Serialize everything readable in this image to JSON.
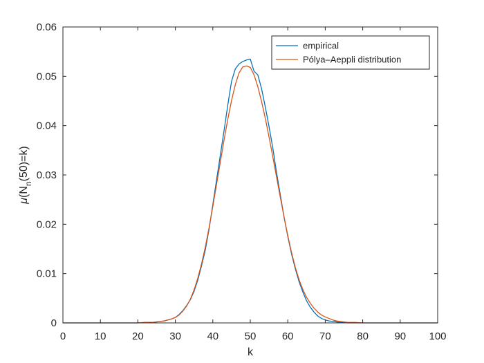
{
  "chart_data": {
    "type": "line",
    "title": "",
    "xlabel": "k",
    "ylabel": {
      "prefix": "μ",
      "open": "(N",
      "sub": "n",
      "rest": "(50)=k)"
    },
    "xlim": [
      0,
      100
    ],
    "ylim": [
      0,
      0.06
    ],
    "xticks": [
      0,
      10,
      20,
      30,
      40,
      50,
      60,
      70,
      80,
      90,
      100
    ],
    "yticks": [
      0,
      0.01,
      0.02,
      0.03,
      0.04,
      0.05,
      0.06
    ],
    "ytick_labels": [
      "0",
      "0.01",
      "0.02",
      "0.03",
      "0.04",
      "0.05",
      "0.06"
    ],
    "grid": false,
    "legend_position": "top-right",
    "series": [
      {
        "name": "empirical",
        "color": "#0072BD",
        "x": [
          0,
          10,
          20,
          22,
          24,
          25,
          26,
          27,
          28,
          29,
          30,
          31,
          32,
          33,
          34,
          35,
          36,
          37,
          38,
          39,
          40,
          41,
          42,
          43,
          44,
          45,
          46,
          47,
          48,
          49,
          50,
          51,
          52,
          53,
          54,
          55,
          56,
          57,
          58,
          59,
          60,
          61,
          62,
          63,
          64,
          65,
          66,
          67,
          68,
          69,
          70,
          71,
          72,
          73,
          74,
          75,
          76,
          78,
          80,
          82,
          90,
          100
        ],
        "y": [
          0,
          0,
          0,
          0.0001,
          0.0001,
          0.0002,
          0.0003,
          0.0004,
          0.0006,
          0.0008,
          0.0011,
          0.0017,
          0.0025,
          0.0035,
          0.0047,
          0.0064,
          0.0087,
          0.0116,
          0.0148,
          0.019,
          0.024,
          0.029,
          0.034,
          0.039,
          0.0442,
          0.049,
          0.0515,
          0.0525,
          0.053,
          0.0533,
          0.0535,
          0.051,
          0.0503,
          0.0475,
          0.0438,
          0.0398,
          0.0355,
          0.0305,
          0.026,
          0.0215,
          0.0175,
          0.014,
          0.011,
          0.0084,
          0.0063,
          0.0045,
          0.0032,
          0.0022,
          0.0014,
          0.0009,
          0.0006,
          0.0004,
          0.0003,
          0.0002,
          0.0001,
          0.0001,
          0,
          0,
          0,
          0,
          0,
          0
        ]
      },
      {
        "name": "Pólya–Aeppli distribution",
        "color": "#D95319",
        "x": [
          0,
          10,
          20,
          22,
          24,
          25,
          26,
          27,
          28,
          29,
          30,
          31,
          32,
          33,
          34,
          35,
          36,
          37,
          38,
          39,
          40,
          41,
          42,
          43,
          44,
          45,
          46,
          47,
          48,
          49,
          50,
          51,
          52,
          53,
          54,
          55,
          56,
          57,
          58,
          59,
          60,
          61,
          62,
          63,
          64,
          65,
          66,
          67,
          68,
          69,
          70,
          71,
          72,
          73,
          74,
          75,
          76,
          78,
          80,
          82,
          84,
          90,
          100
        ],
        "y": [
          0,
          0,
          0,
          0.0001,
          0.0001,
          0.0002,
          0.0003,
          0.0004,
          0.0006,
          0.0008,
          0.0011,
          0.0016,
          0.0024,
          0.0034,
          0.0048,
          0.0067,
          0.0091,
          0.012,
          0.0154,
          0.0193,
          0.0236,
          0.0281,
          0.0326,
          0.0371,
          0.0413,
          0.0451,
          0.0483,
          0.0507,
          0.0519,
          0.0521,
          0.0518,
          0.0503,
          0.0479,
          0.0449,
          0.0415,
          0.0377,
          0.0337,
          0.0296,
          0.0255,
          0.0215,
          0.0177,
          0.0143,
          0.0113,
          0.0088,
          0.0068,
          0.0052,
          0.004,
          0.003,
          0.0022,
          0.0016,
          0.0012,
          0.0009,
          0.0006,
          0.0004,
          0.0003,
          0.0002,
          0.0001,
          0.0001,
          0,
          0,
          0,
          0,
          0
        ]
      }
    ]
  }
}
